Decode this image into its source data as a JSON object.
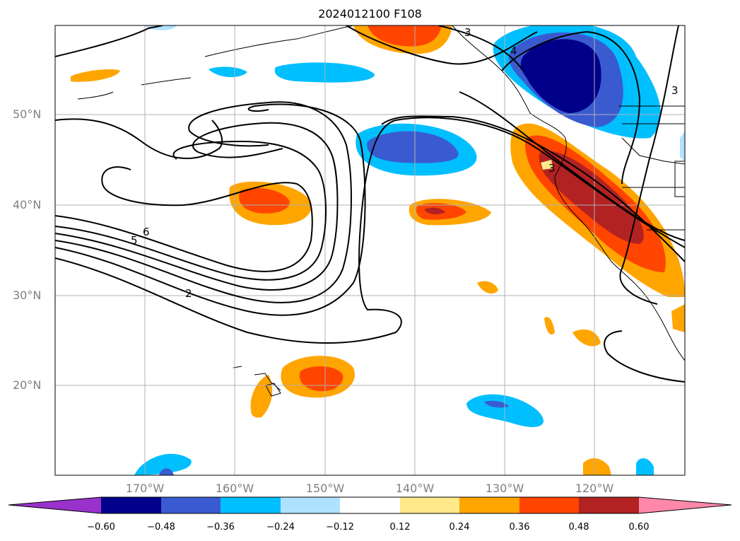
{
  "title": "2024012100 F108",
  "lat_labels": [
    "50°N",
    "40°N",
    "30°N",
    "20°N"
  ],
  "lon_labels": [
    "170°W",
    "160°W",
    "150°W",
    "140°W",
    "130°W",
    "120°W"
  ],
  "colorbar": {
    "ticks": [
      "−0.60",
      "−0.48",
      "−0.36",
      "−0.24",
      "−0.12",
      "0.12",
      "0.24",
      "0.36",
      "0.48",
      "0.60"
    ],
    "colors": [
      "#9932cc",
      "#00008b",
      "#3a5bd0",
      "#00bfff",
      "#b0e2ff",
      "#ffffff",
      "#ffe98a",
      "#ffa500",
      "#ff4500",
      "#b22222",
      "#ff88aa"
    ]
  },
  "contour_labels": [
    "6",
    "5",
    "2",
    "3",
    "4",
    "3",
    "3"
  ]
}
